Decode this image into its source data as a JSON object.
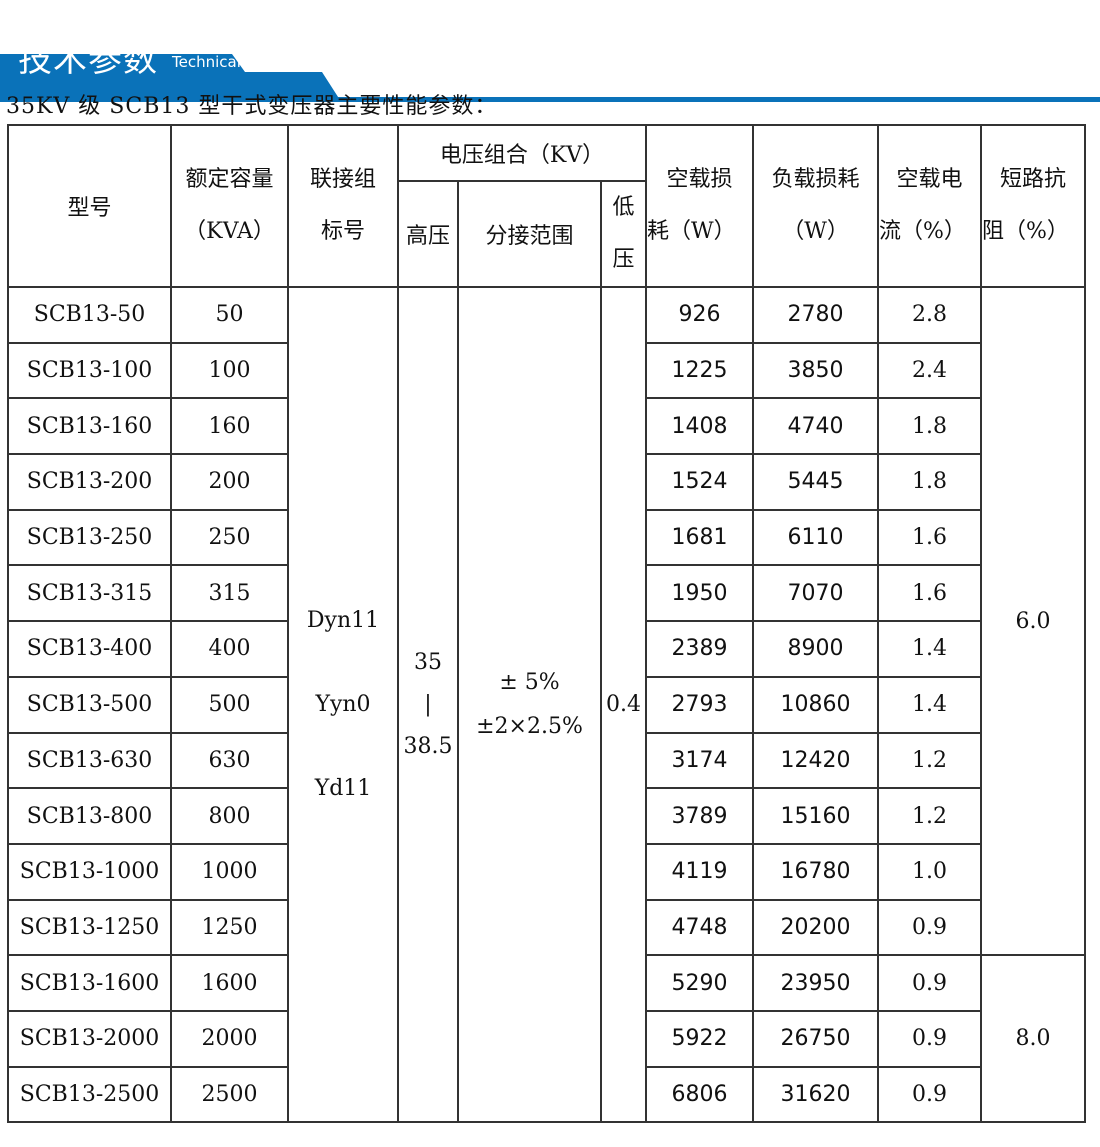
{
  "header": {
    "title": "技术参数",
    "subtitle": "Technical parameter",
    "accent": "#0a72b9"
  },
  "caption": "35KV 级 SCB13 型干式变压器主要性能参数：",
  "table": {
    "columns": {
      "model": "型号",
      "capacity": [
        "额定容量",
        "（KVA）"
      ],
      "group": [
        "联接组",
        "标号"
      ],
      "voltage": "电压组合（KV）",
      "hv": "高压",
      "tap": "分接范围",
      "lv": [
        "低",
        "压"
      ],
      "noload": [
        "空载损",
        "耗（W）"
      ],
      "load": [
        "负载损耗",
        "（W）"
      ],
      "current": [
        "空载电",
        "流（%）"
      ],
      "impedance": [
        "短路抗",
        "阻（%）"
      ]
    },
    "shared": {
      "group": [
        "Dyn11",
        "Yyn0",
        "Yd11"
      ],
      "hv": [
        "35",
        "|",
        "38.5"
      ],
      "tap": [
        "± 5%",
        "±2×2.5%"
      ],
      "lv": "0.4",
      "impedance_a": "6.0",
      "impedance_b": "8.0"
    },
    "rows": [
      {
        "model": "SCB13-50",
        "capacity": "50",
        "noload": "926",
        "load": "2780",
        "current": "2.8"
      },
      {
        "model": "SCB13-100",
        "capacity": "100",
        "noload": "1225",
        "load": "3850",
        "current": "2.4"
      },
      {
        "model": "SCB13-160",
        "capacity": "160",
        "noload": "1408",
        "load": "4740",
        "current": "1.8"
      },
      {
        "model": "SCB13-200",
        "capacity": "200",
        "noload": "1524",
        "load": "5445",
        "current": "1.8"
      },
      {
        "model": "SCB13-250",
        "capacity": "250",
        "noload": "1681",
        "load": "6110",
        "current": "1.6"
      },
      {
        "model": "SCB13-315",
        "capacity": "315",
        "noload": "1950",
        "load": "7070",
        "current": "1.6"
      },
      {
        "model": "SCB13-400",
        "capacity": "400",
        "noload": "2389",
        "load": "8900",
        "current": "1.4"
      },
      {
        "model": "SCB13-500",
        "capacity": "500",
        "noload": "2793",
        "load": "10860",
        "current": "1.4"
      },
      {
        "model": "SCB13-630",
        "capacity": "630",
        "noload": "3174",
        "load": "12420",
        "current": "1.2"
      },
      {
        "model": "SCB13-800",
        "capacity": "800",
        "noload": "3789",
        "load": "15160",
        "current": "1.2"
      },
      {
        "model": "SCB13-1000",
        "capacity": "1000",
        "noload": "4119",
        "load": "16780",
        "current": "1.0"
      },
      {
        "model": "SCB13-1250",
        "capacity": "1250",
        "noload": "4748",
        "load": "20200",
        "current": "0.9"
      },
      {
        "model": "SCB13-1600",
        "capacity": "1600",
        "noload": "5290",
        "load": "23950",
        "current": "0.9"
      },
      {
        "model": "SCB13-2000",
        "capacity": "2000",
        "noload": "5922",
        "load": "26750",
        "current": "0.9"
      },
      {
        "model": "SCB13-2500",
        "capacity": "2500",
        "noload": "6806",
        "load": "31620",
        "current": "0.9"
      }
    ]
  }
}
